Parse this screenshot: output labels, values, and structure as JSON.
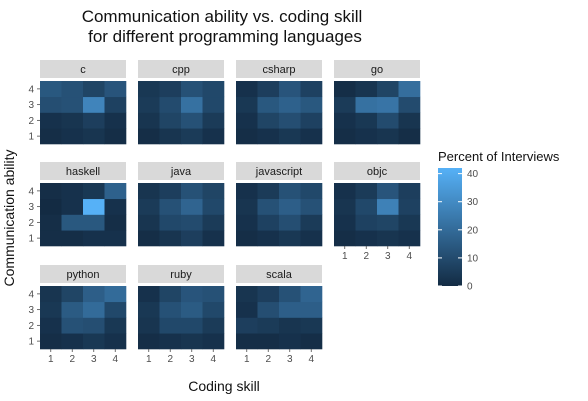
{
  "chart_data": {
    "type": "heatmap",
    "title_lines": [
      "Communication ability vs. coding skill",
      "for different programming languages"
    ],
    "xlabel": "Coding skill",
    "ylabel": "Communication ability",
    "x_categories": [
      "1",
      "2",
      "3",
      "4"
    ],
    "y_categories": [
      "1",
      "2",
      "3",
      "4"
    ],
    "legend": {
      "title": "Percent of Interviews",
      "position": "right",
      "range": [
        0,
        42
      ],
      "ticks": [
        "0",
        "10",
        "20",
        "30",
        "40"
      ],
      "tick_values": [
        0,
        10,
        20,
        30,
        40
      ],
      "low_color": "#132B43",
      "high_color": "#56B1F7"
    },
    "panels": [
      {
        "name": "c",
        "values": [
          [
            1,
            2,
            3,
            1
          ],
          [
            2,
            3,
            6,
            2
          ],
          [
            11,
            12,
            28,
            7
          ],
          [
            14,
            12,
            8,
            13
          ]
        ]
      },
      {
        "name": "cpp",
        "values": [
          [
            1,
            3,
            5,
            2
          ],
          [
            3,
            8,
            12,
            5
          ],
          [
            5,
            10,
            22,
            9
          ],
          [
            4,
            6,
            12,
            9
          ]
        ]
      },
      {
        "name": "csharp",
        "values": [
          [
            1,
            2,
            4,
            2
          ],
          [
            2,
            8,
            11,
            7
          ],
          [
            4,
            14,
            17,
            14
          ],
          [
            2,
            6,
            13,
            7
          ]
        ]
      },
      {
        "name": "go",
        "values": [
          [
            1,
            2,
            3,
            1
          ],
          [
            2,
            4,
            10,
            3
          ],
          [
            5,
            22,
            23,
            10
          ],
          [
            1,
            3,
            8,
            21
          ]
        ]
      },
      {
        "name": "haskell",
        "values": [
          [
            1,
            1,
            2,
            2
          ],
          [
            1,
            14,
            14,
            1
          ],
          [
            0,
            2,
            42,
            2
          ],
          [
            1,
            2,
            4,
            17
          ]
        ]
      },
      {
        "name": "java",
        "values": [
          [
            1,
            3,
            6,
            2
          ],
          [
            3,
            9,
            10,
            5
          ],
          [
            5,
            12,
            18,
            9
          ],
          [
            3,
            6,
            12,
            8
          ]
        ]
      },
      {
        "name": "javascript",
        "values": [
          [
            1,
            2,
            4,
            2
          ],
          [
            2,
            7,
            11,
            5
          ],
          [
            3,
            12,
            16,
            12
          ],
          [
            2,
            5,
            12,
            9
          ]
        ]
      },
      {
        "name": "objc",
        "values": [
          [
            1,
            2,
            3,
            2
          ],
          [
            2,
            7,
            8,
            4
          ],
          [
            3,
            9,
            27,
            7
          ],
          [
            2,
            5,
            13,
            6
          ]
        ]
      },
      {
        "name": "python",
        "values": [
          [
            1,
            2,
            4,
            2
          ],
          [
            2,
            12,
            11,
            4
          ],
          [
            4,
            15,
            20,
            9
          ],
          [
            3,
            8,
            16,
            20
          ]
        ]
      },
      {
        "name": "ruby",
        "values": [
          [
            1,
            2,
            3,
            2
          ],
          [
            3,
            9,
            9,
            5
          ],
          [
            4,
            12,
            15,
            9
          ],
          [
            2,
            8,
            13,
            12
          ]
        ]
      },
      {
        "name": "scala",
        "values": [
          [
            1,
            1,
            2,
            1
          ],
          [
            6,
            5,
            3,
            4
          ],
          [
            2,
            11,
            16,
            16
          ],
          [
            3,
            6,
            12,
            18
          ]
        ]
      }
    ]
  }
}
